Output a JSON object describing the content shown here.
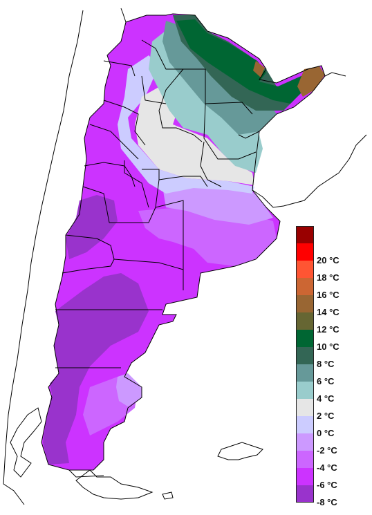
{
  "legend": {
    "bins": [
      {
        "color": "#990000",
        "label": ""
      },
      {
        "color": "#ff0000",
        "label": "20 °C"
      },
      {
        "color": "#ff5533",
        "label": "18 °C"
      },
      {
        "color": "#cc6633",
        "label": "16 °C"
      },
      {
        "color": "#996633",
        "label": "14 °C"
      },
      {
        "color": "#666633",
        "label": "12 °C"
      },
      {
        "color": "#006633",
        "label": "10 °C"
      },
      {
        "color": "#336655",
        "label": "8 °C"
      },
      {
        "color": "#669999",
        "label": "6 °C"
      },
      {
        "color": "#99cccc",
        "label": "4 °C"
      },
      {
        "color": "#e6e6e6",
        "label": "2 °C"
      },
      {
        "color": "#ccccff",
        "label": "0 °C"
      },
      {
        "color": "#cc99ff",
        "label": "-2 °C"
      },
      {
        "color": "#cc66ff",
        "label": "-4 °C"
      },
      {
        "color": "#cc33ff",
        "label": "-6 °C"
      },
      {
        "color": "#9933cc",
        "label": "-8 °C"
      }
    ]
  }
}
